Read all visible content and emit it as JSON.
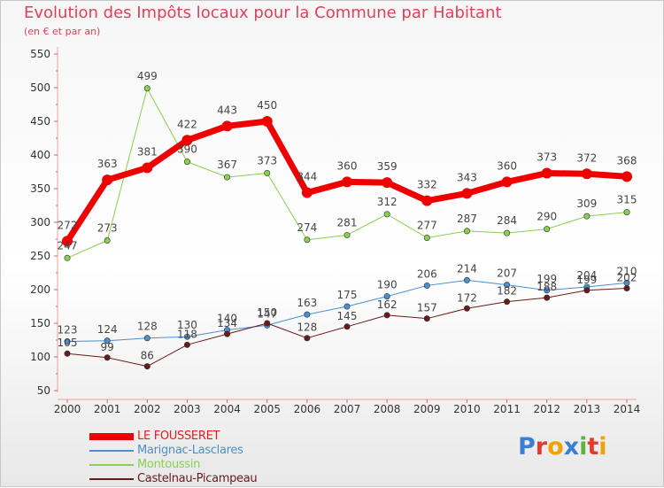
{
  "title": "Evolution des Impôts locaux pour la Commune par Habitant",
  "subtitle": "(en € et par an)",
  "logo": {
    "text": "Proxiti",
    "letters": [
      {
        "ch": "P",
        "color": "#3b7fd4"
      },
      {
        "ch": "r",
        "color": "#e23b2e"
      },
      {
        "ch": "o",
        "color": "#f2a100"
      },
      {
        "ch": "x",
        "color": "#3b7fd4"
      },
      {
        "ch": "i",
        "color": "#5db33c"
      },
      {
        "ch": "t",
        "color": "#e23b2e"
      },
      {
        "ch": "i",
        "color": "#f2a100"
      }
    ]
  },
  "chart_data": {
    "type": "line",
    "title": "Evolution des Impôts locaux pour la Commune par Habitant",
    "subtitle": "(en € et par an)",
    "x": [
      "2000",
      "2001",
      "2002",
      "2003",
      "2004",
      "2005",
      "2006",
      "2007",
      "2008",
      "2009",
      "2010",
      "2011",
      "2012",
      "2013",
      "2014"
    ],
    "ylim": [
      50,
      550
    ],
    "yticks": [
      "50",
      "100",
      "150",
      "200",
      "250",
      "300",
      "350",
      "400",
      "450",
      "500",
      "550"
    ],
    "grid": false,
    "legend_position": "bottom-left",
    "series": [
      {
        "name": "LE FOUSSERET",
        "color": "#ee0000",
        "width": 7,
        "values": [
          272,
          363,
          381,
          422,
          443,
          450,
          344,
          360,
          359,
          332,
          343,
          360,
          373,
          372,
          368
        ],
        "labels": [
          "272",
          "363",
          "381",
          "422",
          "443",
          "450",
          "344",
          "360",
          "359",
          "332",
          "343",
          "360",
          "373",
          "372",
          "368"
        ]
      },
      {
        "name": "Marignac-Lasclares",
        "color": "#4a8fd0",
        "width": 1,
        "values": [
          123,
          124,
          128,
          130,
          140,
          147,
          163,
          175,
          190,
          206,
          214,
          207,
          199,
          204,
          210
        ],
        "labels": [
          "123",
          "124",
          "128",
          "130",
          "140",
          "147",
          "163",
          "175",
          "190",
          "206",
          "214",
          "207",
          "199",
          "204",
          "210"
        ]
      },
      {
        "name": "Montoussin",
        "color": "#88d050",
        "width": 1,
        "values": [
          247,
          273,
          499,
          390,
          367,
          373,
          274,
          281,
          312,
          277,
          287,
          284,
          290,
          309,
          315
        ],
        "labels": [
          "247",
          "273",
          "499",
          "390",
          "367",
          "373",
          "274",
          "281",
          "312",
          "277",
          "287",
          "284",
          "290",
          "309",
          "315"
        ]
      },
      {
        "name": "Castelnau-Picampeau",
        "color": "#6a1a1a",
        "width": 1,
        "values": [
          105,
          99,
          86,
          118,
          134,
          150,
          128,
          145,
          162,
          157,
          172,
          182,
          188,
          199,
          202
        ],
        "labels": [
          "105",
          "99",
          "86",
          "118",
          "134",
          "150",
          "128",
          "145",
          "162",
          "157",
          "172",
          "182",
          "188",
          "199",
          "202"
        ]
      }
    ]
  }
}
